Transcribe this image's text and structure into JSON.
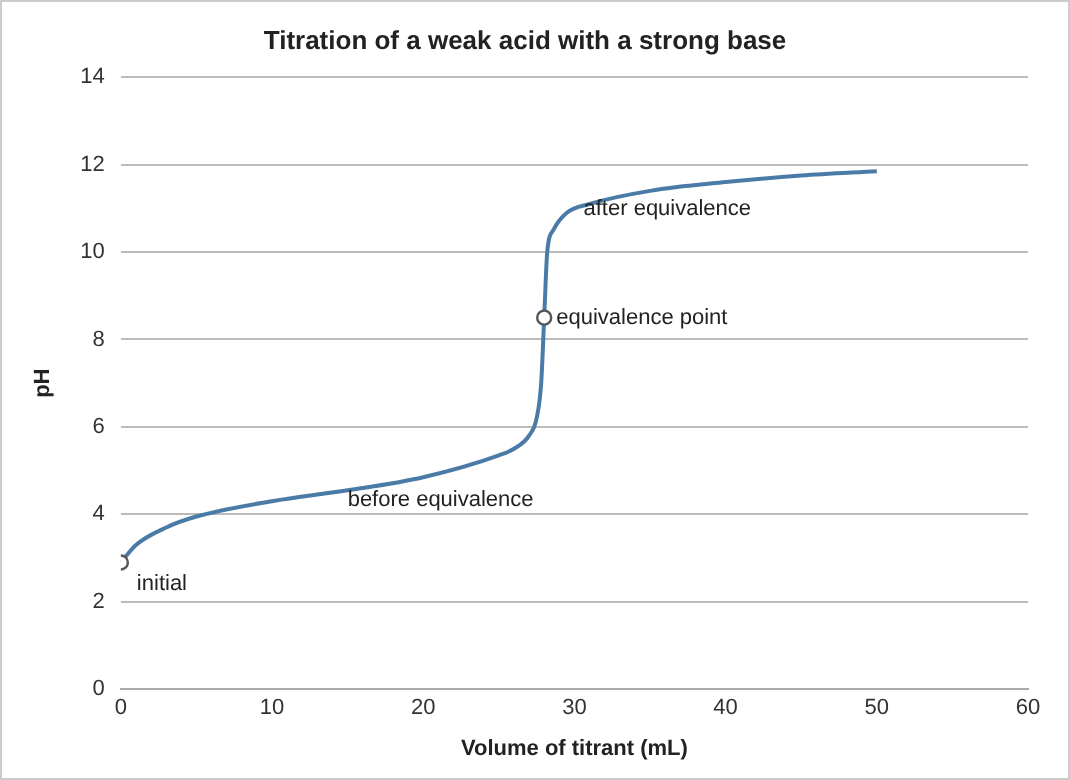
{
  "chart_data": {
    "type": "line",
    "title": "Titration of a weak acid with a strong base",
    "xlabel": "Volume of titrant (mL)",
    "ylabel": "pH",
    "xlim": [
      0,
      60
    ],
    "xticks": [
      0,
      10,
      20,
      30,
      40,
      50,
      60
    ],
    "ylim": [
      0,
      14
    ],
    "yticks": [
      0,
      2,
      4,
      6,
      8,
      10,
      12,
      14
    ],
    "grid": "y",
    "legend": false,
    "series": [
      {
        "color": "#4a7ba7",
        "marker": "none",
        "x": [
          0,
          1,
          3,
          5,
          10,
          15,
          20,
          25,
          26,
          27,
          27.5,
          27.8,
          28,
          28.2,
          28.6,
          29.5,
          31,
          35,
          40,
          45,
          50
        ],
        "values": [
          2.9,
          3.3,
          3.7,
          3.95,
          4.3,
          4.55,
          4.85,
          5.35,
          5.5,
          5.8,
          6.2,
          7,
          8.5,
          10,
          10.5,
          10.9,
          11.1,
          11.4,
          11.6,
          11.75,
          11.85
        ]
      },
      {
        "type": "scatter",
        "color": "#555555",
        "marker": "circle",
        "x": [
          0,
          28
        ],
        "values": [
          2.9,
          8.5
        ]
      }
    ],
    "annotations": [
      {
        "text": "initial",
        "x": 0,
        "y": 2.9
      },
      {
        "text": "equivalence point",
        "x": 28,
        "y": 8.5
      },
      "before equivalence",
      "after equivalence"
    ]
  }
}
